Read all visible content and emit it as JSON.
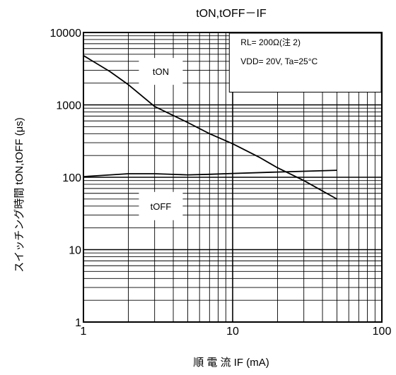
{
  "chart_data": {
    "type": "line",
    "title": "tON,tOFF－IF",
    "xlabel": "順 電 流 IF (mA)",
    "ylabel": "スイッチング時間 tON,tOFF (μs)",
    "x_scale": "log",
    "y_scale": "log",
    "xlim": [
      1,
      100
    ],
    "ylim": [
      1,
      10000
    ],
    "grid": true,
    "x_ticks": [
      "1",
      "10",
      "100"
    ],
    "y_ticks": [
      "1",
      "10",
      "100",
      "1000",
      "10000"
    ],
    "annotation_box": {
      "line1": "RL= 200Ω(注 2)",
      "line2": "VDD= 20V, Ta=25°C"
    },
    "series": [
      {
        "name": "tON",
        "label_position": "upper-left",
        "x": [
          1,
          1.5,
          2,
          3,
          5,
          7,
          10,
          15,
          20,
          30,
          50
        ],
        "y": [
          4800,
          2900,
          1900,
          950,
          570,
          400,
          290,
          190,
          135,
          90,
          50
        ]
      },
      {
        "name": "tOFF",
        "label_position": "below-line",
        "x": [
          1,
          2,
          3,
          5,
          7,
          10,
          20,
          50
        ],
        "y": [
          102,
          112,
          112,
          108,
          110,
          113,
          118,
          125
        ]
      }
    ]
  }
}
